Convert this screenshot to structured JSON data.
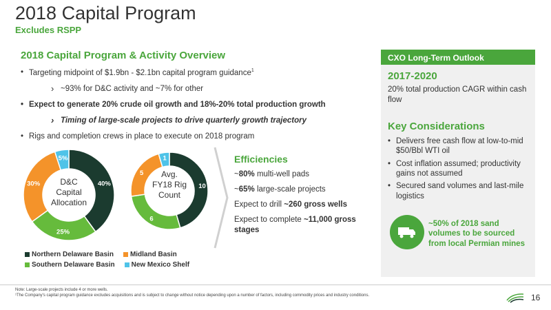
{
  "header": {
    "title": "2018 Capital Program",
    "subtitle": "Excludes RSPP"
  },
  "overview": {
    "title": "2018 Capital Program & Activity Overview",
    "b1": "Targeting midpoint of $1.9bn - $2.1bn capital program guidance",
    "b1_sup": "1",
    "s1": "~93% for D&C activity and ~7% for other",
    "b2": "Expect to generate 20% crude oil growth and 18%-20% total production growth",
    "s2": "Timing of large-scale projects to drive quarterly growth trajectory",
    "b3": "Rigs and completion crews in place to execute on 2018 program"
  },
  "pie1": {
    "center": [
      "D&C",
      "Capital",
      "Allocation"
    ],
    "slices": [
      {
        "label": "40%",
        "value": 40,
        "color": "#1b3b2f"
      },
      {
        "label": "25%",
        "value": 25,
        "color": "#66bb3c"
      },
      {
        "label": "30%",
        "value": 30,
        "color": "#f4932a"
      },
      {
        "label": "5%",
        "value": 5,
        "color": "#4fc3e8"
      }
    ]
  },
  "pie2": {
    "center": [
      "Avg.",
      "FY18 Rig",
      "Count"
    ],
    "slices": [
      {
        "label": "10",
        "value": 10,
        "color": "#1b3b2f"
      },
      {
        "label": "6",
        "value": 6,
        "color": "#66bb3c"
      },
      {
        "label": "5",
        "value": 5,
        "color": "#f4932a"
      },
      {
        "label": "1",
        "value": 1,
        "color": "#4fc3e8"
      }
    ]
  },
  "legend": [
    {
      "name": "Northern Delaware Basin",
      "color": "#1b3b2f"
    },
    {
      "name": "Midland Basin",
      "color": "#f4932a"
    },
    {
      "name": "Southern Delaware Basin",
      "color": "#66bb3c"
    },
    {
      "name": "New Mexico Shelf",
      "color": "#4fc3e8"
    }
  ],
  "efficiencies": {
    "title": "Efficiencies",
    "l1_pre": "~",
    "l1_bold": "80%",
    "l1_rest": " multi-well pads",
    "l2_pre": "~",
    "l2_bold": "65%",
    "l2_rest": " large-scale projects",
    "l3_pre": "Expect to drill ",
    "l3_bold": "~260 gross wells",
    "l4_pre": "Expect to complete ",
    "l4_bold": "~11,000 gross stages"
  },
  "sidebar": {
    "header": "CXO Long-Term Outlook",
    "years": "2017-2020",
    "cagr": "20% total production CAGR within cash flow",
    "key_title": "Key Considerations",
    "items": [
      "Delivers free cash flow at low-to-mid $50/Bbl WTI oil",
      "Cost inflation assumed; productivity gains not assumed",
      "Secured sand volumes and last-mile logistics"
    ],
    "sand_note": "~50% of 2018 sand volumes to be sourced from local Permian mines"
  },
  "footer": {
    "note1": "Note: Large-scale projects include 4 or more wells.",
    "note2": "¹The Company's capital program guidance excludes acquisitions and is subject to change without notice depending upon a number of factors, including commodity prices and industry conditions.",
    "page": "16"
  },
  "colors": {
    "accent": "#4aa63c",
    "dark_green": "#1b3b2f",
    "light_green": "#66bb3c",
    "orange": "#f4932a",
    "light_blue": "#4fc3e8"
  }
}
